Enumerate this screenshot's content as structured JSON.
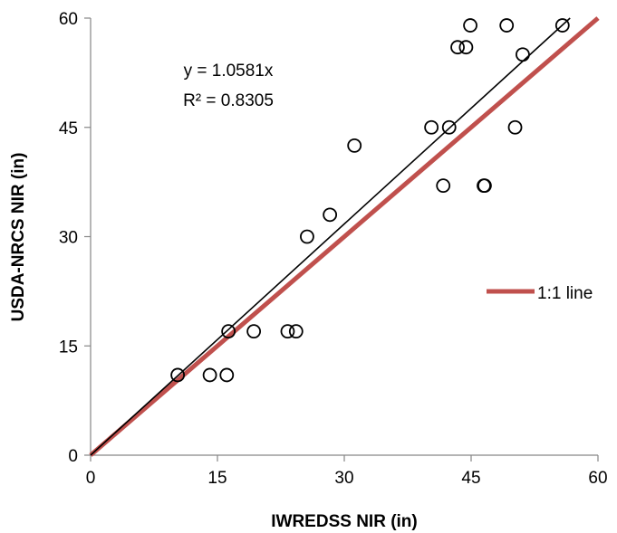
{
  "chart_data": {
    "type": "scatter",
    "title": "",
    "xlabel": "IWREDSS NIR (in)",
    "ylabel": "USDA-NRCS NIR (in)",
    "xlim": [
      0,
      60
    ],
    "ylim": [
      0,
      60
    ],
    "xticks": [
      "0",
      "15",
      "30",
      "45",
      "60"
    ],
    "yticks": [
      "0",
      "15",
      "30",
      "45",
      "60"
    ],
    "grid": false,
    "series": [
      {
        "marker": "open-circle",
        "x": [
          10.3,
          14.1,
          16.1,
          16.3,
          19.3,
          23.3,
          24.3,
          25.6,
          28.3,
          31.2,
          40.3,
          41.7,
          42.4,
          43.4,
          44.4,
          44.9,
          46.5,
          46.6,
          49.2,
          50.2,
          51.1,
          55.8
        ],
        "y": [
          11,
          11,
          11,
          17,
          17,
          17,
          17,
          30,
          33,
          42.5,
          45,
          37,
          45,
          56,
          56,
          59,
          37,
          37,
          59,
          45,
          55,
          59
        ]
      },
      {
        "name": "1:1 line",
        "type": "line",
        "color": "#c0504d",
        "x": [
          0,
          60
        ],
        "y": [
          0,
          60
        ]
      },
      {
        "type": "line",
        "color": "#000000",
        "x": [
          0,
          56.7
        ],
        "y": [
          0,
          60
        ]
      }
    ],
    "annotations": [
      "y = 1.0581x",
      "R² = 0.8305"
    ],
    "legend": {
      "position": "right",
      "entries": [
        {
          "label": "1:1 line",
          "color": "#c0504d"
        }
      ]
    }
  }
}
